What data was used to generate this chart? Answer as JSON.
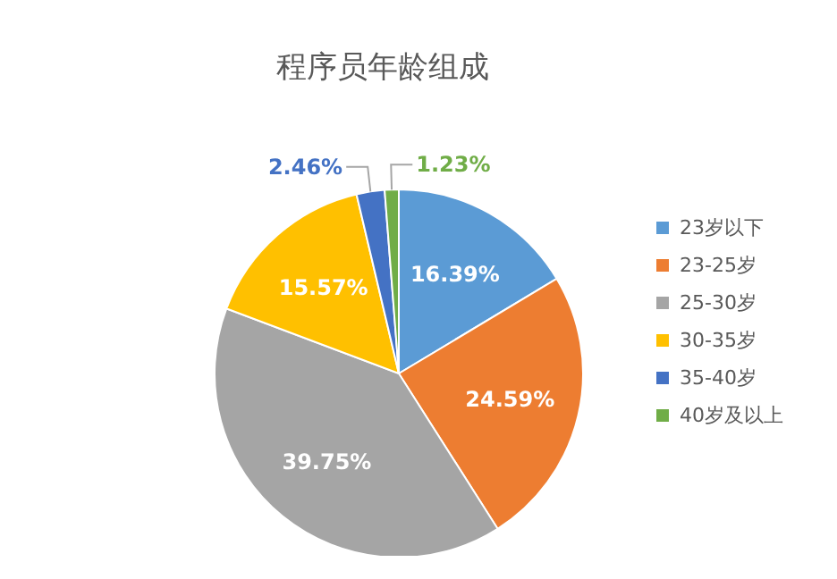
{
  "chart_data": {
    "type": "pie",
    "title": "程序员年龄组成",
    "categories": [
      "23岁以下",
      "23-25岁",
      "25-30岁",
      "30-35岁",
      "35-40岁",
      "40岁及以上"
    ],
    "values": [
      16.39,
      24.59,
      39.75,
      15.57,
      2.46,
      1.23
    ],
    "colors": [
      "#5b9bd5",
      "#ed7d31",
      "#a5a5a5",
      "#ffc000",
      "#4472c4",
      "#70ad47"
    ],
    "value_labels": [
      "16.39%",
      "24.59%",
      "39.75%",
      "15.57%",
      "2.46%",
      "1.23%"
    ],
    "legend": "right"
  }
}
